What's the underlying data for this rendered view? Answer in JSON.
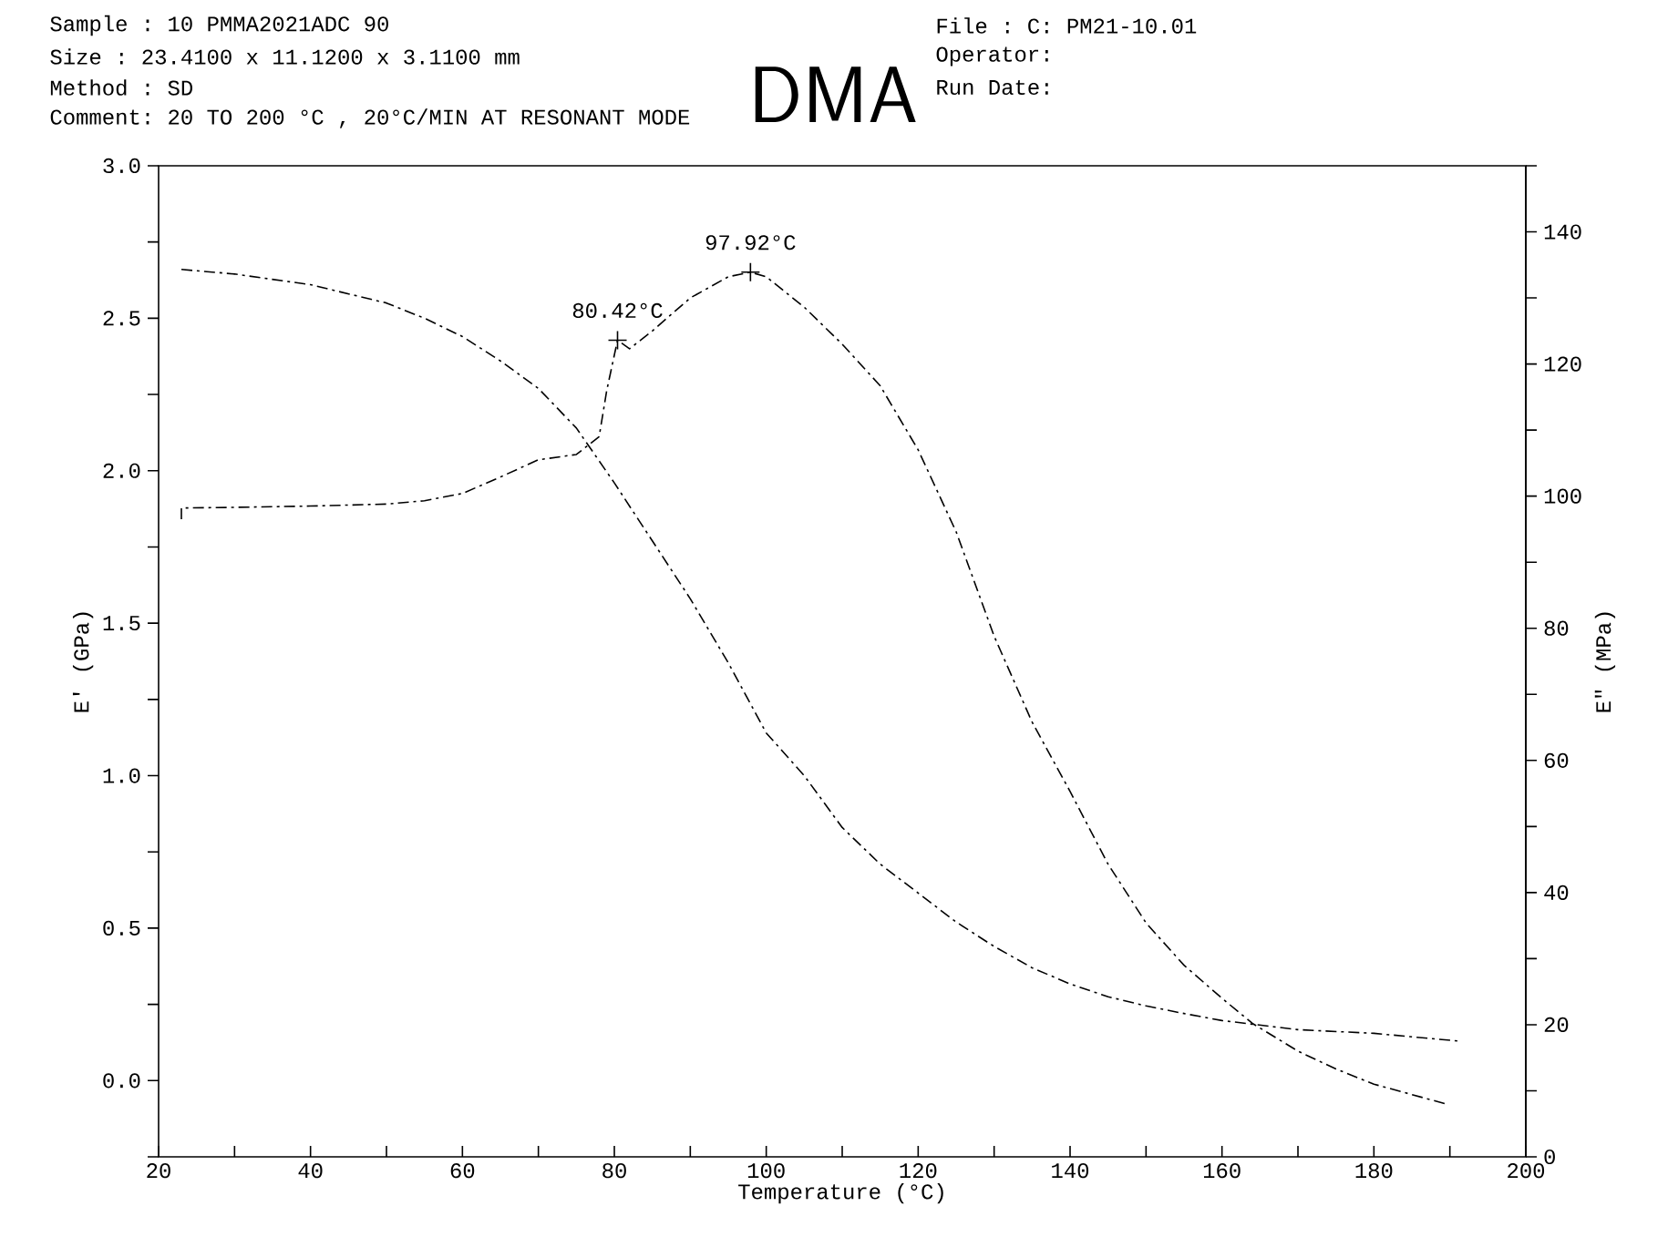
{
  "chart_data": {
    "type": "line",
    "title": "DMA",
    "xlabel": "Temperature (°C)",
    "ylabel": "E' (GPa)",
    "y2label": "E\" (MPa)",
    "xlim": [
      20,
      200
    ],
    "ylim": [
      -0.25,
      3.0
    ],
    "y2lim": [
      0,
      150
    ],
    "xticks": [
      20,
      {
        "value": 30,
        "label": null
      },
      40,
      {
        "value": 50,
        "label": null
      },
      60,
      {
        "value": 70,
        "label": null
      },
      80,
      {
        "value": 90,
        "label": null
      },
      100,
      {
        "value": 110,
        "label": null
      },
      120,
      {
        "value": 130,
        "label": null
      },
      140,
      {
        "value": 150,
        "label": null
      },
      160,
      {
        "value": 170,
        "label": null
      },
      180,
      {
        "value": 190,
        "label": null
      },
      200
    ],
    "yticks": [
      {
        "value": -0.25,
        "label": null
      },
      {
        "value": 0,
        "label": "0.0"
      },
      {
        "value": 0.25,
        "label": null
      },
      {
        "value": 0.5,
        "label": "0.5"
      },
      {
        "value": 0.75,
        "label": null
      },
      {
        "value": 1,
        "label": "1.0"
      },
      {
        "value": 1.25,
        "label": null
      },
      {
        "value": 1.5,
        "label": "1.5"
      },
      {
        "value": 1.75,
        "label": null
      },
      {
        "value": 2,
        "label": "2.0"
      },
      {
        "value": 2.25,
        "label": null
      },
      {
        "value": 2.5,
        "label": "2.5"
      },
      {
        "value": 2.75,
        "label": null
      },
      {
        "value": 3,
        "label": "3.0"
      }
    ],
    "y2ticks": [
      0,
      {
        "value": 10,
        "label": null
      },
      20,
      {
        "value": 30,
        "label": null
      },
      40,
      {
        "value": 50,
        "label": null
      },
      60,
      {
        "value": 70,
        "label": null
      },
      80,
      {
        "value": 90,
        "label": null
      },
      100,
      {
        "value": 110,
        "label": null
      },
      120,
      {
        "value": 130,
        "label": null
      },
      140,
      {
        "value": 150,
        "label": null
      }
    ],
    "marker": "none",
    "series": [
      {
        "color": "#000000",
        "line_style": "dashed",
        "x": [
          23,
          30,
          40,
          50,
          55,
          60,
          65,
          70,
          75,
          80,
          85,
          90,
          95,
          100,
          105,
          110,
          115,
          120,
          125,
          130,
          135,
          140,
          145,
          150,
          155,
          160,
          164,
          170,
          180,
          191
        ],
        "values": [
          2.66,
          2.645,
          2.61,
          2.55,
          2.5,
          2.44,
          2.36,
          2.27,
          2.14,
          1.96,
          1.77,
          1.58,
          1.37,
          1.14,
          1.0,
          0.83,
          0.71,
          0.615,
          0.52,
          0.44,
          0.37,
          0.317,
          0.275,
          0.245,
          0.22,
          0.197,
          0.185,
          0.167,
          0.155,
          0.13
        ]
      },
      {
        "color": "#000000",
        "line_style": "dashed",
        "axis": "y2",
        "x": [
          23,
          23,
          30,
          40,
          50,
          55,
          60,
          65,
          70,
          75,
          78,
          79,
          80.42,
          82,
          85,
          90,
          95,
          97.92,
          100,
          105,
          110,
          115,
          120,
          125,
          130,
          135,
          140,
          145,
          150,
          155,
          160,
          164,
          170,
          175,
          180,
          189.5
        ],
        "values": [
          96.5,
          98.2,
          98.3,
          98.5,
          98.8,
          99.3,
          100.4,
          102.9,
          105.5,
          106.3,
          109,
          116,
          123.6,
          122.3,
          125,
          130,
          133.2,
          133.9,
          133.2,
          128.6,
          123,
          116.7,
          107,
          94.6,
          78.8,
          65.8,
          55.3,
          44.3,
          35.4,
          29,
          24,
          20.2,
          16,
          13.3,
          11,
          8
        ]
      },
      {
        "type": "scatter",
        "color": "#000000",
        "marker": "cross",
        "axis": "y2",
        "x": [
          80.42,
          97.92
        ],
        "values": [
          123.6,
          133.9
        ]
      }
    ],
    "annotations": [
      "Sample : 10 PMMA2021ADC 90",
      "Size   : 23.4100 x 11.1200 x 3.1100 mm",
      "Method : SD",
      "Comment: 20 TO 200 °C , 20°C/MIN AT RESONANT MODE",
      "File     : C: PM21-10.01",
      "Operator:",
      "Run Date:",
      "80.42°C",
      "97.92°C"
    ]
  }
}
